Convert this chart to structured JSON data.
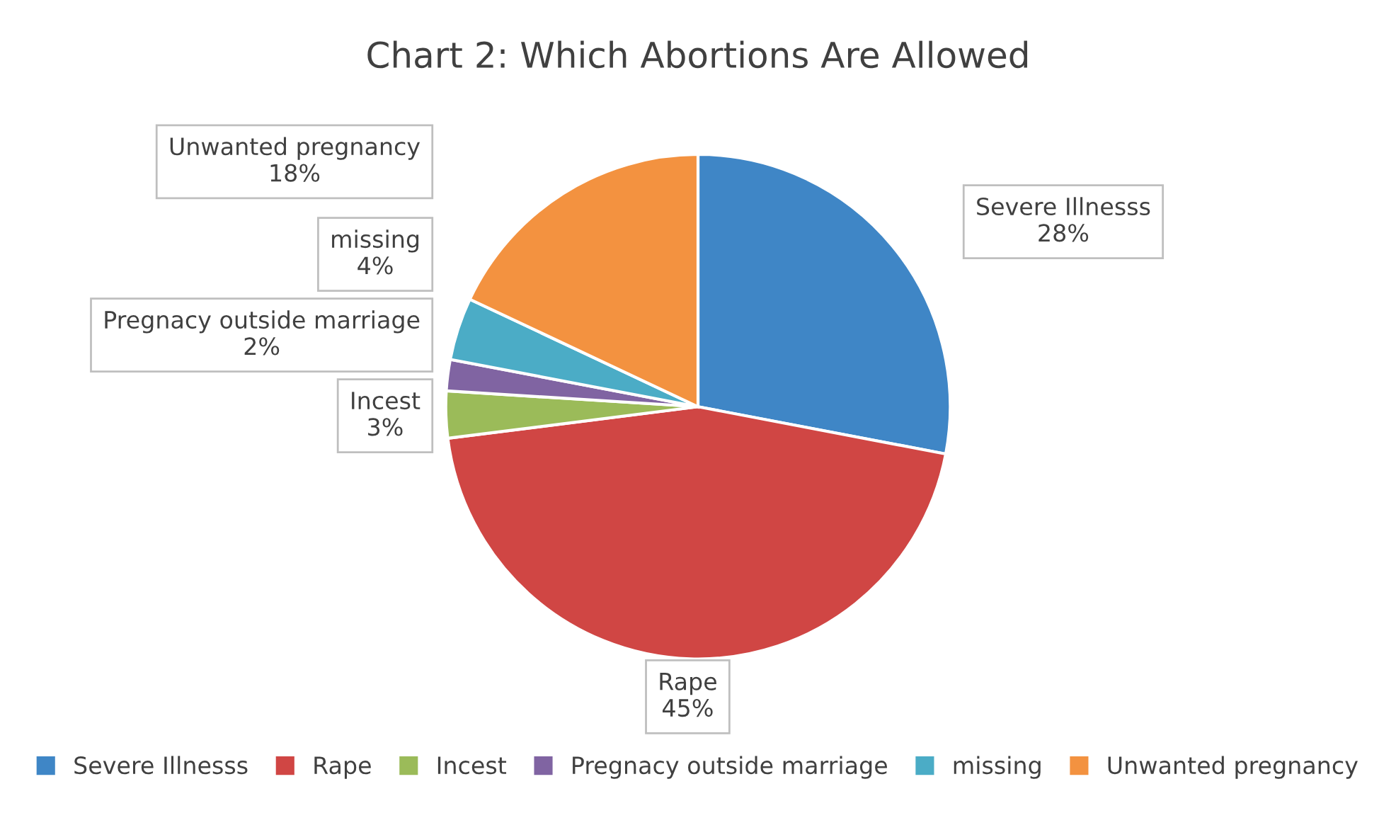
{
  "chart_data": {
    "type": "pie",
    "title": "Chart 2: Which Abortions Are Allowed",
    "categories": [
      "Severe Illnesss",
      "Rape",
      "Incest",
      "Pregnacy outside marriage",
      "missing",
      "Unwanted pregnancy"
    ],
    "values": [
      28,
      45,
      3,
      2,
      4,
      18
    ],
    "value_labels": [
      "28%",
      "45%",
      "3%",
      "2%",
      "4%",
      "18%"
    ],
    "colors": [
      "#3f86c6",
      "#d04644",
      "#9bbb59",
      "#8064a2",
      "#4bacc6",
      "#f39240"
    ],
    "legend": "bottom"
  }
}
